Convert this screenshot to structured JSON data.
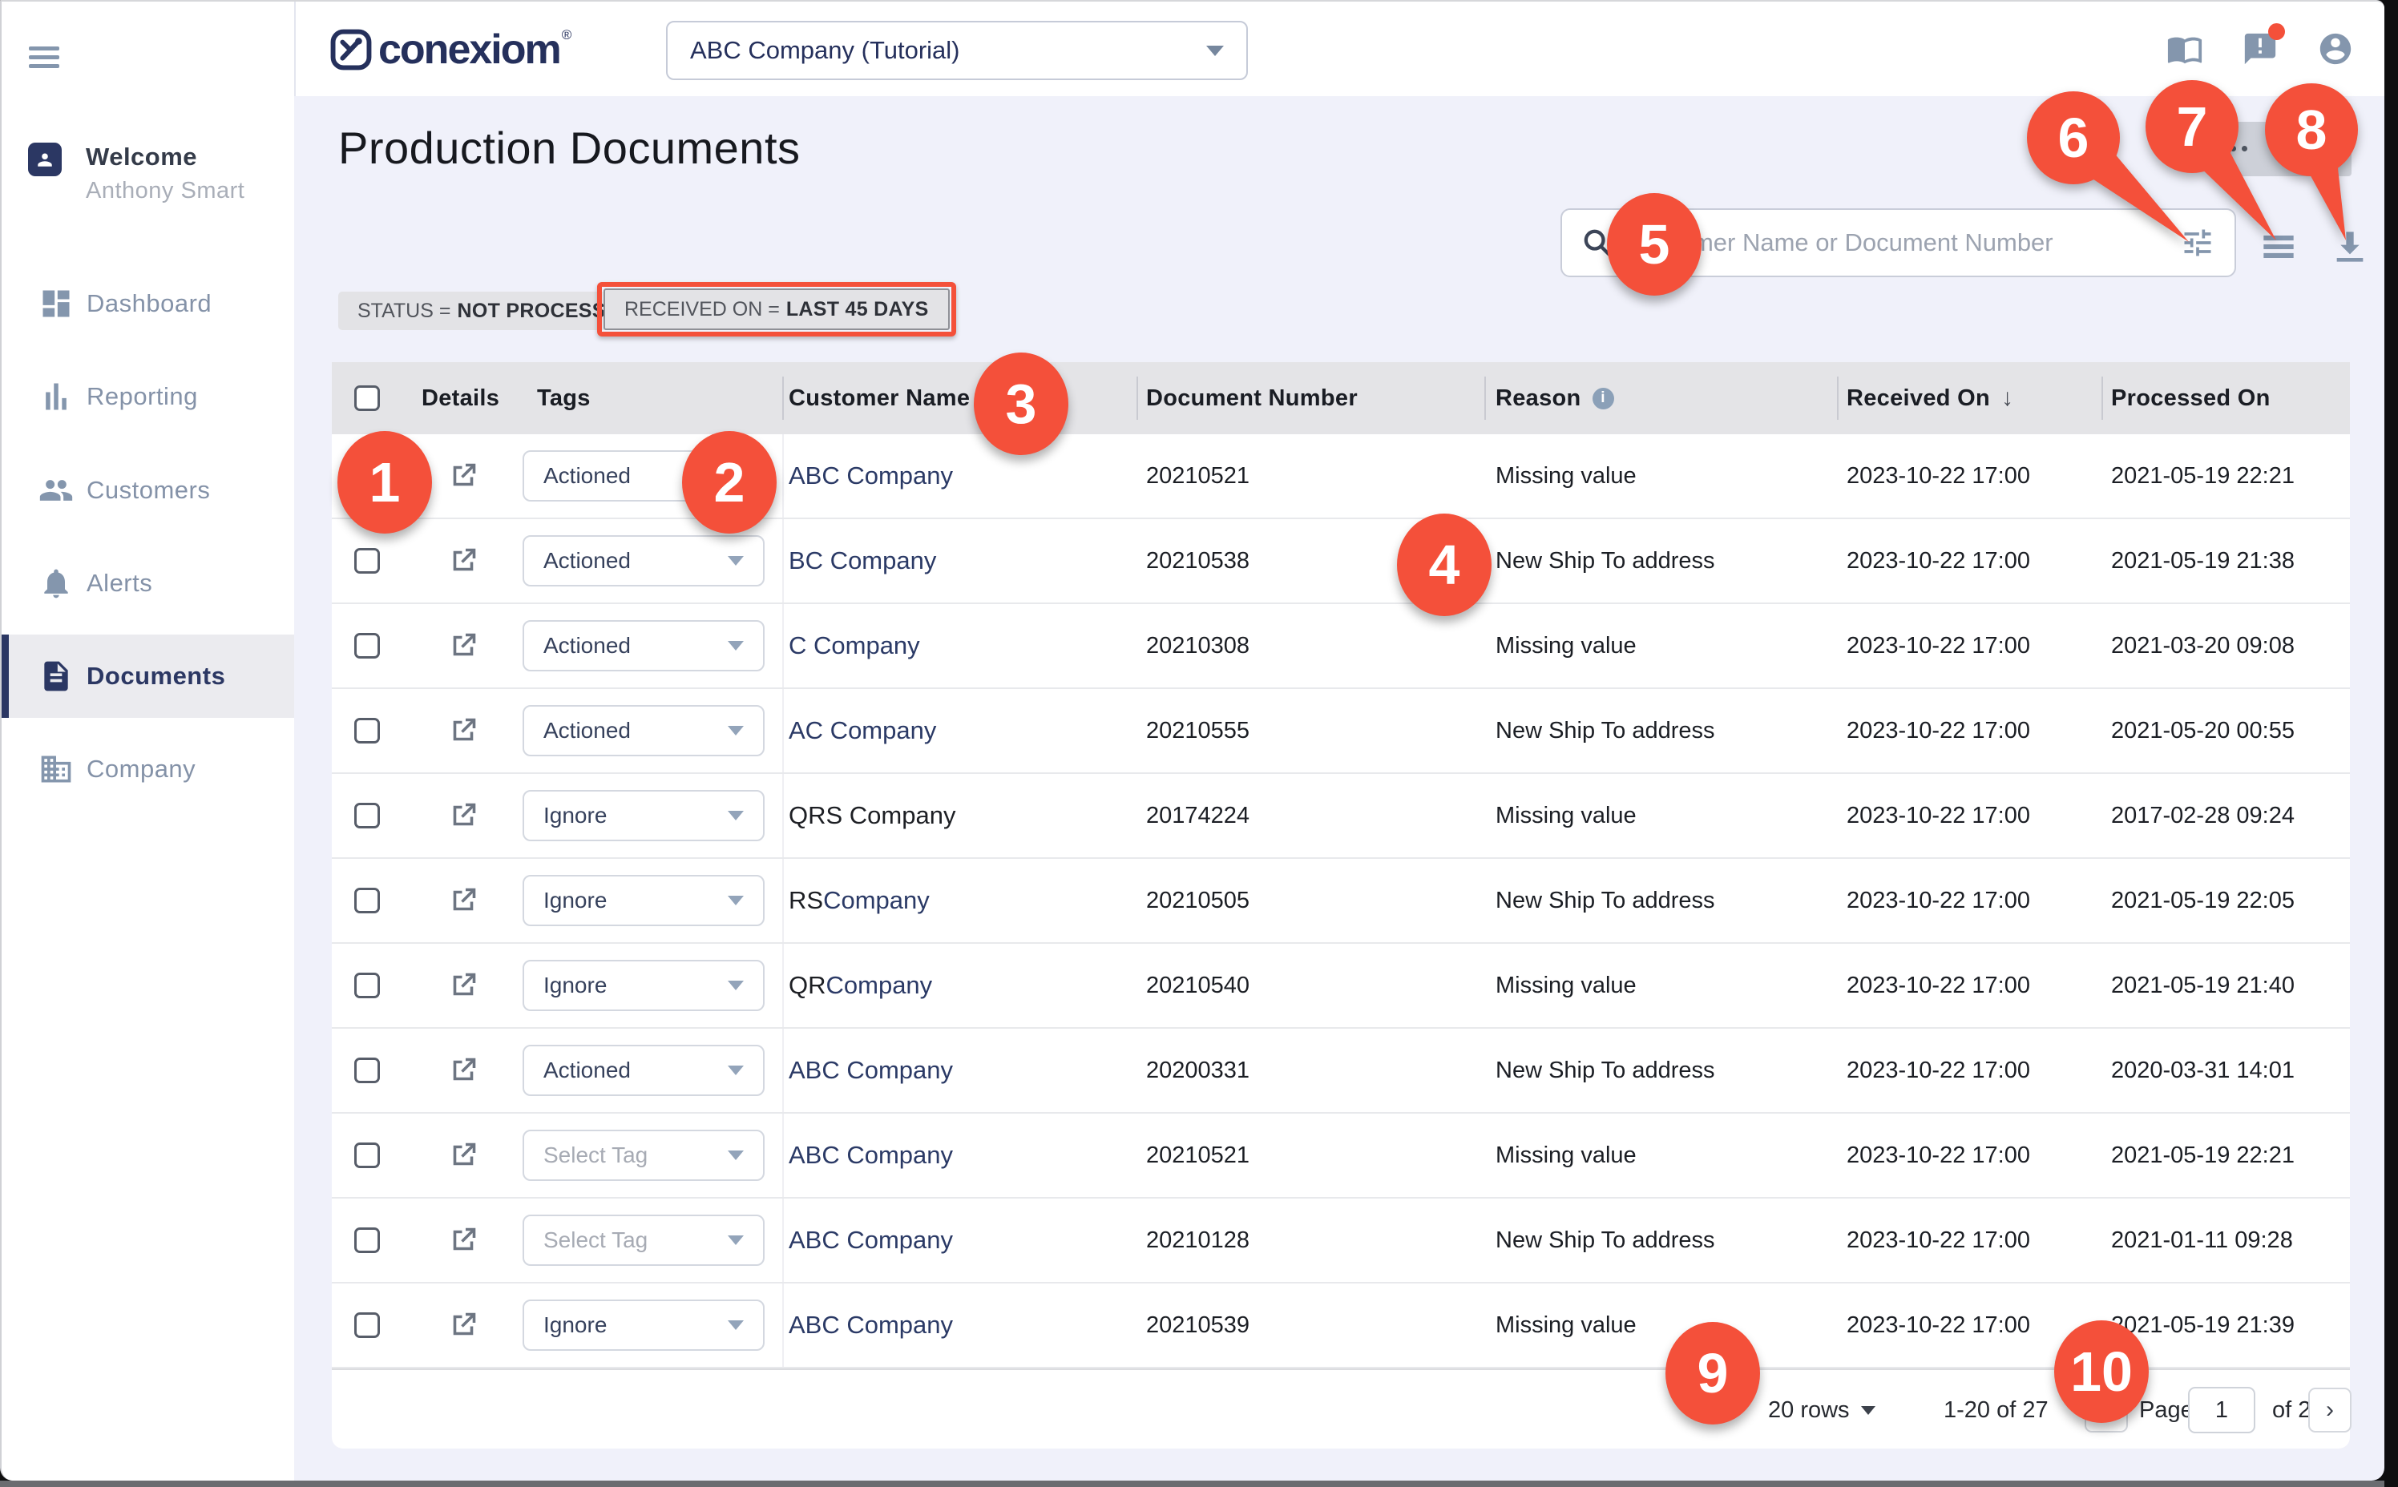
{
  "topbar": {
    "logo_text": "conexiom",
    "logo_reg": "®",
    "company_selector": "ABC Company (Tutorial)"
  },
  "sidebar": {
    "welcome_label": "Welcome",
    "user_name": "Anthony Smart",
    "items": [
      "Dashboard",
      "Reporting",
      "Customers",
      "Alerts",
      "Documents",
      "Company"
    ],
    "active_item": "Documents"
  },
  "page": {
    "title": "Production Documents",
    "filters": [
      {
        "label": "STATUS =",
        "value": "NOT PROCESSED"
      },
      {
        "label": "RECEIVED ON =",
        "value": "LAST 45 DAYS"
      }
    ],
    "search": {
      "placeholder": "Customer Name or Document Number"
    }
  },
  "table": {
    "headers": {
      "details": "Details",
      "tags": "Tags",
      "customer": "Customer Name",
      "document": "Document Number",
      "reason": "Reason",
      "received": "Received On",
      "processed": "Processed On"
    },
    "rows": [
      {
        "tag": "Actioned",
        "tag_is_placeholder": false,
        "name_black": "",
        "name_navy": "ABC Company",
        "doc": "20210521",
        "reason": "Missing value",
        "received": "2023-10-22 17:00",
        "processed": "2021-05-19 22:21"
      },
      {
        "tag": "Actioned",
        "tag_is_placeholder": false,
        "name_black": "",
        "name_navy": "BC Company",
        "doc": "20210538",
        "reason": "New Ship To address",
        "received": "2023-10-22 17:00",
        "processed": "2021-05-19 21:38"
      },
      {
        "tag": "Actioned",
        "tag_is_placeholder": false,
        "name_black": "",
        "name_navy": "C Company",
        "doc": "20210308",
        "reason": "Missing value",
        "received": "2023-10-22 17:00",
        "processed": "2021-03-20 09:08"
      },
      {
        "tag": "Actioned",
        "tag_is_placeholder": false,
        "name_black": "",
        "name_navy": "AC Company",
        "doc": "20210555",
        "reason": "New Ship To address",
        "received": "2023-10-22 17:00",
        "processed": "2021-05-20 00:55"
      },
      {
        "tag": "Ignore",
        "tag_is_placeholder": false,
        "name_black": "QRS Company",
        "name_navy": "",
        "doc": "20174224",
        "reason": "Missing value",
        "received": "2023-10-22 17:00",
        "processed": "2017-02-28 09:24"
      },
      {
        "tag": "Ignore",
        "tag_is_placeholder": false,
        "name_black": "RS ",
        "name_navy": "Company",
        "doc": "20210505",
        "reason": "New Ship To address",
        "received": "2023-10-22 17:00",
        "processed": "2021-05-19 22:05"
      },
      {
        "tag": "Ignore",
        "tag_is_placeholder": false,
        "name_black": "QR ",
        "name_navy": "Company",
        "doc": "20210540",
        "reason": "Missing value",
        "received": "2023-10-22 17:00",
        "processed": "2021-05-19 21:40"
      },
      {
        "tag": "Actioned",
        "tag_is_placeholder": false,
        "name_black": "",
        "name_navy": "ABC Company",
        "doc": "20200331",
        "reason": "New Ship To address",
        "received": "2023-10-22 17:00",
        "processed": "2020-03-31 14:01"
      },
      {
        "tag": "Select Tag",
        "tag_is_placeholder": true,
        "name_black": "",
        "name_navy": "ABC Company",
        "doc": "20210521",
        "reason": "Missing value",
        "received": "2023-10-22 17:00",
        "processed": "2021-05-19 22:21"
      },
      {
        "tag": "Select Tag",
        "tag_is_placeholder": true,
        "name_black": "",
        "name_navy": "ABC Company",
        "doc": "20210128",
        "reason": "New Ship To address",
        "received": "2023-10-22 17:00",
        "processed": "2021-01-11 09:28"
      },
      {
        "tag": "Ignore",
        "tag_is_placeholder": false,
        "name_black": "",
        "name_navy": "ABC Company",
        "doc": "20210539",
        "reason": "Missing value",
        "received": "2023-10-22 17:00",
        "processed": "2021-05-19 21:39"
      }
    ]
  },
  "pagination": {
    "rows_per_page": "20 rows",
    "range": "1-20 of 27",
    "prev": "‹",
    "page_label": "Page",
    "page_value": "1",
    "of_label": "of 2",
    "next": "›"
  },
  "callouts": [
    "1",
    "2",
    "3",
    "4",
    "5",
    "6",
    "7",
    "8",
    "9",
    "10"
  ],
  "colors": {
    "accent_red": "#f4503a",
    "brand_navy": "#2b3763",
    "icon_gray_blue": "#8496ad",
    "page_bg": "#f0f1fa"
  }
}
